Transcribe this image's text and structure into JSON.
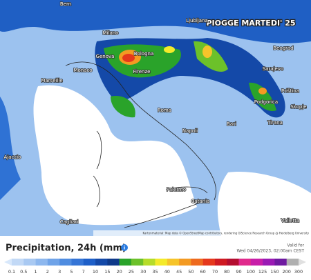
{
  "map": {
    "title": "PIOGGE MARTEDI' 25",
    "attribution": "Kartenmaterial: Map data © OpenStreetMap contributors, rendering GIScience Research Group @ Heidelberg University",
    "cities": [
      "Bern",
      "Ljubljana",
      "Beograd",
      "Milano",
      "Genova",
      "Bologna",
      "Monaco",
      "Marseille",
      "Firenze",
      "Sarajevo",
      "Podgorica",
      "Priština",
      "Skopje",
      "Tirana",
      "Roma",
      "Napoli",
      "Bari",
      "Ajaccio",
      "Palermo",
      "Catania",
      "Cagliari",
      "Valletta"
    ]
  },
  "legend": {
    "title": "Precipitation, 24h (mm)",
    "valid_label": "Valid for",
    "valid_time": "Wed 04/26/2023, 02:00am CEST",
    "ticks": [
      "0.1",
      "0.5",
      "1",
      "2",
      "3",
      "5",
      "7",
      "10",
      "15",
      "20",
      "25",
      "30",
      "35",
      "40",
      "45",
      "50",
      "60",
      "70",
      "80",
      "90",
      "100",
      "125",
      "150",
      "200",
      "300"
    ],
    "colors": [
      "#d8e8fb",
      "#c2d9f6",
      "#a9c9f2",
      "#8db7ee",
      "#6fa3e8",
      "#4f8ce0",
      "#3575d6",
      "#1e5fc8",
      "#1449a8",
      "#0f3a8a",
      "#2aa32a",
      "#6cc12a",
      "#b6dc2a",
      "#f4ea2a",
      "#f6c42a",
      "#f39a22",
      "#ee6a1e",
      "#e5381c",
      "#cf1a22",
      "#b40e30",
      "#e02a8c",
      "#c81ea8",
      "#9a1ab4",
      "#6e1aa0",
      "#b0b0b0",
      "#e0e0e0"
    ]
  }
}
